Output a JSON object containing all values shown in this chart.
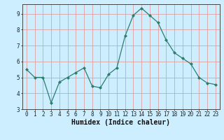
{
  "x": [
    0,
    1,
    2,
    3,
    4,
    5,
    6,
    7,
    8,
    9,
    10,
    11,
    12,
    13,
    14,
    15,
    16,
    17,
    18,
    19,
    20,
    21,
    22,
    23
  ],
  "y": [
    5.5,
    5.0,
    5.0,
    3.4,
    4.7,
    5.0,
    5.3,
    5.6,
    4.45,
    4.35,
    5.2,
    5.6,
    7.6,
    8.9,
    9.35,
    8.9,
    8.45,
    7.35,
    6.55,
    6.2,
    5.85,
    5.0,
    4.65,
    4.55
  ],
  "line_color": "#2d7d6e",
  "marker": "D",
  "marker_size": 2.0,
  "bg_color": "#cceeff",
  "grid_color": "#dda0a0",
  "xlabel": "Humidex (Indice chaleur)",
  "ylim": [
    3.0,
    9.6
  ],
  "xlim": [
    -0.5,
    23.5
  ],
  "yticks": [
    3,
    4,
    5,
    6,
    7,
    8,
    9
  ],
  "xticks": [
    0,
    1,
    2,
    3,
    4,
    5,
    6,
    7,
    8,
    9,
    10,
    11,
    12,
    13,
    14,
    15,
    16,
    17,
    18,
    19,
    20,
    21,
    22,
    23
  ],
  "tick_fontsize": 5.5,
  "label_fontsize": 7.0
}
